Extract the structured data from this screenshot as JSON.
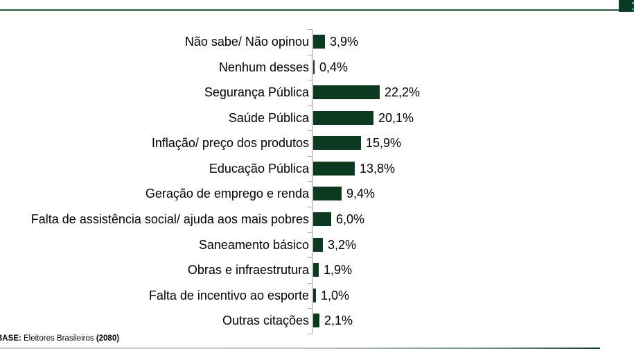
{
  "page": {
    "background": "#ffffff"
  },
  "header": {
    "rule_color": "#527d64",
    "corner_block_color": "#0b3a23",
    "corner_accent_color": "#2fb3d6"
  },
  "chart_data": {
    "type": "bar",
    "orientation": "horizontal",
    "title": "",
    "xlabel": "",
    "ylabel": "",
    "xlim": [
      0,
      25
    ],
    "grid": false,
    "legend": false,
    "bar_color": "#0b3a21",
    "axis_color": "#999999",
    "categories": [
      "Não sabe/ Não opinou",
      "Nenhum desses",
      "Segurança Pública",
      "Saúde Pública",
      "Inflação/ preço dos produtos",
      "Educação Pública",
      "Geração de emprego e renda",
      "Falta de assistência social/ ajuda aos mais pobres",
      "Saneamento básico",
      "Obras e infraestrutura",
      "Falta de incentivo ao esporte",
      "Outras citações"
    ],
    "values": [
      3.9,
      0.4,
      22.2,
      20.1,
      15.9,
      13.8,
      9.4,
      6.0,
      3.2,
      1.9,
      1.0,
      2.1
    ],
    "value_labels": [
      "3,9%",
      "0,4%",
      "22,2%",
      "20,1%",
      "15,9%",
      "13,8%",
      "9,4%",
      "6,0%",
      "3,2%",
      "1,9%",
      "1,0%",
      "2,1%"
    ]
  },
  "footer": {
    "base_label": "BASE:",
    "base_text": "Eleitores Brasileiros",
    "base_count": "(2080)"
  }
}
